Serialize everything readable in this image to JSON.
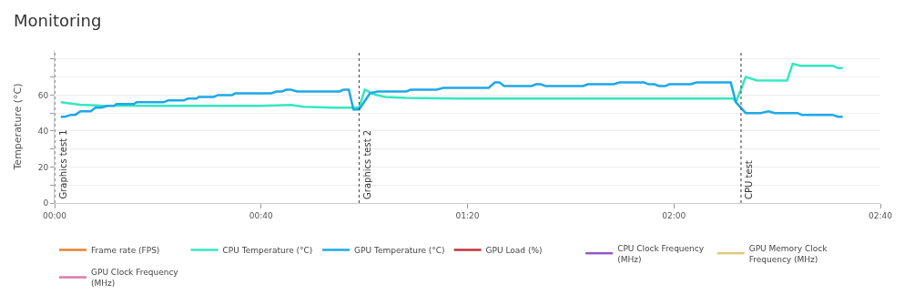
{
  "chart_data": {
    "type": "line",
    "title": "Monitoring",
    "ylabel": "Temperature (°C)",
    "xlim": [
      0,
      160
    ],
    "xticks": [
      {
        "value": 0,
        "label": "00:00"
      },
      {
        "value": 40,
        "label": "00:40"
      },
      {
        "value": 80,
        "label": "01:20"
      },
      {
        "value": 120,
        "label": "02:00"
      },
      {
        "value": 160,
        "label": "02:40"
      }
    ],
    "ylim": [
      0,
      85
    ],
    "yticks": [
      0,
      {
        "value": 10,
        "label": null
      },
      20,
      {
        "value": 30,
        "label": null
      },
      40,
      {
        "value": 50,
        "label": null
      },
      60,
      {
        "value": 70,
        "label": null
      },
      {
        "value": 80,
        "label": null
      }
    ],
    "grid": "y",
    "legend": "bottom",
    "marker": "none",
    "line_style": "solid",
    "ref_lines": [
      {
        "axis": "x",
        "value": 0,
        "label": "Graphics test 1",
        "color": "#555555",
        "line_style": "dotted"
      },
      {
        "axis": "x",
        "value": 59,
        "label": "Graphics test 2",
        "color": "#555555",
        "line_style": "dotted"
      },
      {
        "axis": "x",
        "value": 133,
        "label": "CPU test",
        "color": "#555555",
        "line_style": "dotted"
      }
    ],
    "series": [
      {
        "name": "Frame rate (FPS)",
        "color": "#e8812f"
      },
      {
        "name": "CPU Temperature (°C)",
        "color": "#33e8c0",
        "x": [
          1.2,
          2.5,
          4.9,
          9,
          20,
          30,
          40,
          45.8,
          48.2,
          54,
          57.6,
          59,
          60.1,
          62,
          64,
          68.1,
          78,
          100,
          120,
          131.5,
          132,
          133.9,
          136,
          141.9,
          143,
          144.5,
          150.7,
          151.8,
          152.7
        ],
        "values": [
          56,
          55.5,
          54.7,
          54.2,
          54,
          54,
          54,
          54.5,
          53.5,
          53,
          53,
          53,
          63,
          60.3,
          59,
          58.5,
          58,
          58,
          58,
          58,
          56,
          70,
          68.2,
          68,
          77.4,
          76.3,
          76.3,
          75,
          75
        ]
      },
      {
        "name": "GPU Temperature (°C)",
        "color": "#1ea8e8",
        "x": [
          1.2,
          2,
          3.2,
          4,
          5,
          7,
          7.9,
          9,
          10.3,
          11.5,
          12,
          15.3,
          15.9,
          21.1,
          22,
          25,
          25.8,
          27.5,
          27.9,
          30.8,
          31.7,
          34.4,
          35,
          42,
          43,
          44,
          44.9,
          45.8,
          47,
          55.2,
          56,
          57,
          57.9,
          59,
          61.1,
          62.6,
          68.1,
          69,
          74,
          75.3,
          84.1,
          85.3,
          86.2,
          87.1,
          92.4,
          93.3,
          94.2,
          95.1,
          102.4,
          103.3,
          108.3,
          109.5,
          114.2,
          115.1,
          116.2,
          117.1,
          118.3,
          119.1,
          123.2,
          124.4,
          128.8,
          131,
          132,
          133.9,
          136.8,
          138.3,
          139.5,
          143.9,
          144.8,
          150.7,
          151.8,
          152.7
        ],
        "values": [
          48,
          48,
          49,
          49,
          51,
          51,
          53,
          53,
          54,
          54,
          55,
          55,
          56,
          56,
          57,
          57,
          58,
          58,
          59,
          59,
          60,
          60,
          61,
          61,
          62,
          62,
          63,
          63,
          62,
          62,
          63,
          63,
          52,
          52,
          61,
          62,
          62,
          63,
          63,
          64,
          64,
          67,
          67,
          65,
          65,
          66,
          66,
          65,
          65,
          66,
          66,
          67,
          67,
          66,
          66,
          65,
          65,
          66,
          66,
          67,
          67,
          67,
          56,
          50,
          50,
          51,
          50,
          50,
          49,
          49,
          48,
          48
        ]
      },
      {
        "name": "GPU Load (%)",
        "color": "#c0343a"
      },
      {
        "name": "CPU Clock Frequency (MHz)",
        "color": "#8e5ac8"
      },
      {
        "name": "GPU Memory Clock Frequency (MHz)",
        "color": "#e0c878"
      },
      {
        "name": "GPU Clock Frequency (MHz)",
        "color": "#e07aa8"
      }
    ]
  }
}
